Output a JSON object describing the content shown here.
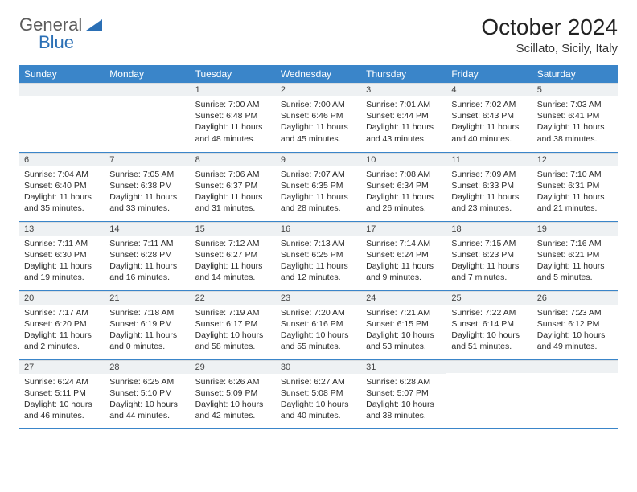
{
  "logo": {
    "text1": "General",
    "text2": "Blue",
    "accent_color": "#2a6fb5"
  },
  "title": "October 2024",
  "location": "Scillato, Sicily, Italy",
  "header_bg": "#3a85c9",
  "header_fg": "#ffffff",
  "daynum_bg": "#eef1f3",
  "row_border": "#3a85c9",
  "day_headers": [
    "Sunday",
    "Monday",
    "Tuesday",
    "Wednesday",
    "Thursday",
    "Friday",
    "Saturday"
  ],
  "weeks": [
    [
      {
        "n": "",
        "sunrise": "",
        "sunset": "",
        "daylight": ""
      },
      {
        "n": "",
        "sunrise": "",
        "sunset": "",
        "daylight": ""
      },
      {
        "n": "1",
        "sunrise": "Sunrise: 7:00 AM",
        "sunset": "Sunset: 6:48 PM",
        "daylight": "Daylight: 11 hours and 48 minutes."
      },
      {
        "n": "2",
        "sunrise": "Sunrise: 7:00 AM",
        "sunset": "Sunset: 6:46 PM",
        "daylight": "Daylight: 11 hours and 45 minutes."
      },
      {
        "n": "3",
        "sunrise": "Sunrise: 7:01 AM",
        "sunset": "Sunset: 6:44 PM",
        "daylight": "Daylight: 11 hours and 43 minutes."
      },
      {
        "n": "4",
        "sunrise": "Sunrise: 7:02 AM",
        "sunset": "Sunset: 6:43 PM",
        "daylight": "Daylight: 11 hours and 40 minutes."
      },
      {
        "n": "5",
        "sunrise": "Sunrise: 7:03 AM",
        "sunset": "Sunset: 6:41 PM",
        "daylight": "Daylight: 11 hours and 38 minutes."
      }
    ],
    [
      {
        "n": "6",
        "sunrise": "Sunrise: 7:04 AM",
        "sunset": "Sunset: 6:40 PM",
        "daylight": "Daylight: 11 hours and 35 minutes."
      },
      {
        "n": "7",
        "sunrise": "Sunrise: 7:05 AM",
        "sunset": "Sunset: 6:38 PM",
        "daylight": "Daylight: 11 hours and 33 minutes."
      },
      {
        "n": "8",
        "sunrise": "Sunrise: 7:06 AM",
        "sunset": "Sunset: 6:37 PM",
        "daylight": "Daylight: 11 hours and 31 minutes."
      },
      {
        "n": "9",
        "sunrise": "Sunrise: 7:07 AM",
        "sunset": "Sunset: 6:35 PM",
        "daylight": "Daylight: 11 hours and 28 minutes."
      },
      {
        "n": "10",
        "sunrise": "Sunrise: 7:08 AM",
        "sunset": "Sunset: 6:34 PM",
        "daylight": "Daylight: 11 hours and 26 minutes."
      },
      {
        "n": "11",
        "sunrise": "Sunrise: 7:09 AM",
        "sunset": "Sunset: 6:33 PM",
        "daylight": "Daylight: 11 hours and 23 minutes."
      },
      {
        "n": "12",
        "sunrise": "Sunrise: 7:10 AM",
        "sunset": "Sunset: 6:31 PM",
        "daylight": "Daylight: 11 hours and 21 minutes."
      }
    ],
    [
      {
        "n": "13",
        "sunrise": "Sunrise: 7:11 AM",
        "sunset": "Sunset: 6:30 PM",
        "daylight": "Daylight: 11 hours and 19 minutes."
      },
      {
        "n": "14",
        "sunrise": "Sunrise: 7:11 AM",
        "sunset": "Sunset: 6:28 PM",
        "daylight": "Daylight: 11 hours and 16 minutes."
      },
      {
        "n": "15",
        "sunrise": "Sunrise: 7:12 AM",
        "sunset": "Sunset: 6:27 PM",
        "daylight": "Daylight: 11 hours and 14 minutes."
      },
      {
        "n": "16",
        "sunrise": "Sunrise: 7:13 AM",
        "sunset": "Sunset: 6:25 PM",
        "daylight": "Daylight: 11 hours and 12 minutes."
      },
      {
        "n": "17",
        "sunrise": "Sunrise: 7:14 AM",
        "sunset": "Sunset: 6:24 PM",
        "daylight": "Daylight: 11 hours and 9 minutes."
      },
      {
        "n": "18",
        "sunrise": "Sunrise: 7:15 AM",
        "sunset": "Sunset: 6:23 PM",
        "daylight": "Daylight: 11 hours and 7 minutes."
      },
      {
        "n": "19",
        "sunrise": "Sunrise: 7:16 AM",
        "sunset": "Sunset: 6:21 PM",
        "daylight": "Daylight: 11 hours and 5 minutes."
      }
    ],
    [
      {
        "n": "20",
        "sunrise": "Sunrise: 7:17 AM",
        "sunset": "Sunset: 6:20 PM",
        "daylight": "Daylight: 11 hours and 2 minutes."
      },
      {
        "n": "21",
        "sunrise": "Sunrise: 7:18 AM",
        "sunset": "Sunset: 6:19 PM",
        "daylight": "Daylight: 11 hours and 0 minutes."
      },
      {
        "n": "22",
        "sunrise": "Sunrise: 7:19 AM",
        "sunset": "Sunset: 6:17 PM",
        "daylight": "Daylight: 10 hours and 58 minutes."
      },
      {
        "n": "23",
        "sunrise": "Sunrise: 7:20 AM",
        "sunset": "Sunset: 6:16 PM",
        "daylight": "Daylight: 10 hours and 55 minutes."
      },
      {
        "n": "24",
        "sunrise": "Sunrise: 7:21 AM",
        "sunset": "Sunset: 6:15 PM",
        "daylight": "Daylight: 10 hours and 53 minutes."
      },
      {
        "n": "25",
        "sunrise": "Sunrise: 7:22 AM",
        "sunset": "Sunset: 6:14 PM",
        "daylight": "Daylight: 10 hours and 51 minutes."
      },
      {
        "n": "26",
        "sunrise": "Sunrise: 7:23 AM",
        "sunset": "Sunset: 6:12 PM",
        "daylight": "Daylight: 10 hours and 49 minutes."
      }
    ],
    [
      {
        "n": "27",
        "sunrise": "Sunrise: 6:24 AM",
        "sunset": "Sunset: 5:11 PM",
        "daylight": "Daylight: 10 hours and 46 minutes."
      },
      {
        "n": "28",
        "sunrise": "Sunrise: 6:25 AM",
        "sunset": "Sunset: 5:10 PM",
        "daylight": "Daylight: 10 hours and 44 minutes."
      },
      {
        "n": "29",
        "sunrise": "Sunrise: 6:26 AM",
        "sunset": "Sunset: 5:09 PM",
        "daylight": "Daylight: 10 hours and 42 minutes."
      },
      {
        "n": "30",
        "sunrise": "Sunrise: 6:27 AM",
        "sunset": "Sunset: 5:08 PM",
        "daylight": "Daylight: 10 hours and 40 minutes."
      },
      {
        "n": "31",
        "sunrise": "Sunrise: 6:28 AM",
        "sunset": "Sunset: 5:07 PM",
        "daylight": "Daylight: 10 hours and 38 minutes."
      },
      {
        "n": "",
        "sunrise": "",
        "sunset": "",
        "daylight": ""
      },
      {
        "n": "",
        "sunrise": "",
        "sunset": "",
        "daylight": ""
      }
    ]
  ]
}
